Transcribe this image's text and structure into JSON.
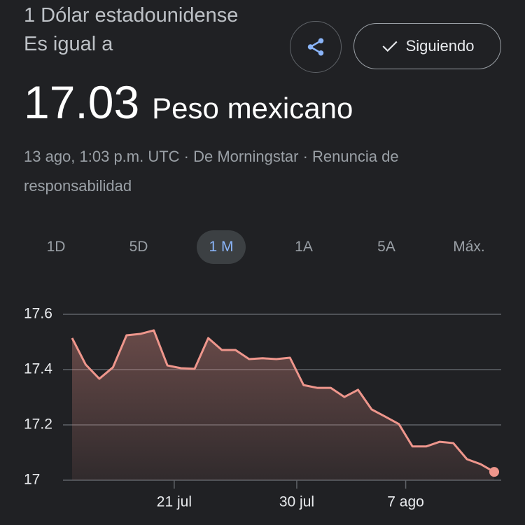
{
  "header": {
    "title": "1 Dólar estadounidense Es igual a",
    "value": "17.03",
    "currency": "Peso mexicano",
    "source": "13 ago, 1:03 p.m. UTC · De Morningstar · Renuncia de responsabilidad",
    "follow_button": "Siguiendo"
  },
  "ranges": {
    "options": [
      "1D",
      "5D",
      "1 M",
      "1A",
      "5A",
      "Máx."
    ],
    "selected": 2
  },
  "chart_data": {
    "type": "line",
    "color": "#ee968c",
    "categories": [
      null,
      null,
      null,
      null,
      null,
      null,
      null,
      null,
      null,
      null,
      null,
      null,
      null,
      null,
      null,
      null,
      null,
      null,
      null,
      null,
      null,
      null,
      null,
      null,
      null,
      null,
      null,
      null,
      null,
      null,
      null,
      null
    ],
    "values": [
      17.514,
      17.418,
      17.367,
      17.408,
      17.524,
      17.529,
      17.542,
      17.415,
      17.405,
      17.403,
      17.514,
      17.471,
      17.471,
      17.438,
      17.441,
      17.438,
      17.443,
      17.344,
      17.334,
      17.334,
      17.301,
      17.327,
      17.256,
      17.23,
      17.203,
      17.122,
      17.122,
      17.139,
      17.134,
      17.076,
      17.058,
      17.03
    ],
    "xticks": [
      {
        "value": 7.5,
        "label": "21 jul"
      },
      {
        "value": 16.5,
        "label": "30 jul"
      },
      {
        "value": 24.5,
        "label": "7 ago"
      }
    ],
    "ylim": [
      17.0,
      17.6
    ],
    "yticks": [
      17.0,
      17.2,
      17.4,
      17.6
    ],
    "grid": true
  }
}
